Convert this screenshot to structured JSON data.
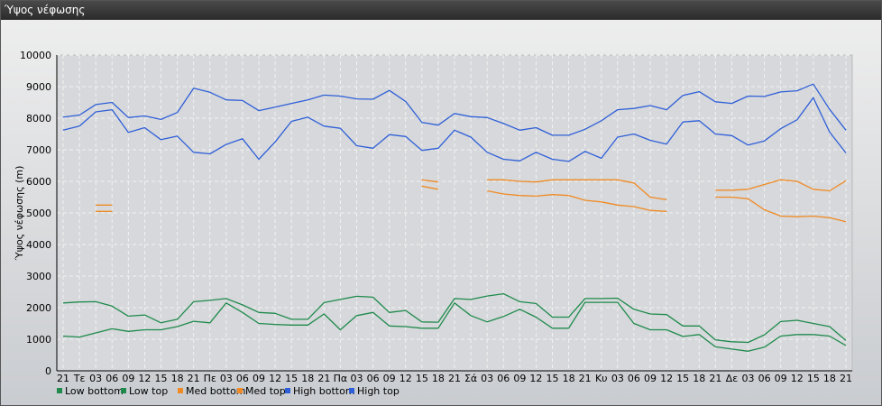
{
  "window": {
    "title": "Ύψος νέφωσης"
  },
  "chart_data": {
    "type": "line",
    "title": "",
    "xlabel": "",
    "ylabel": "Ύψος νέφωσης (m)",
    "ylim": [
      0,
      10000
    ],
    "yticks": [
      0,
      1000,
      2000,
      3000,
      4000,
      5000,
      6000,
      7000,
      8000,
      9000,
      10000
    ],
    "grid": true,
    "legend": "bottom-left",
    "x": [
      "21",
      "Τε",
      "03",
      "06",
      "09",
      "12",
      "15",
      "18",
      "21",
      "Πε",
      "03",
      "06",
      "09",
      "12",
      "15",
      "18",
      "21",
      "Πα",
      "03",
      "06",
      "09",
      "12",
      "15",
      "18",
      "21",
      "Σά",
      "03",
      "06",
      "09",
      "12",
      "15",
      "18",
      "21",
      "Κυ",
      "03",
      "06",
      "09",
      "12",
      "15",
      "18",
      "21",
      "Δε",
      "03",
      "06",
      "09",
      "12",
      "15",
      "18",
      "21"
    ],
    "series": [
      {
        "name": "Low bottom",
        "color": "#1f8a4c",
        "values": [
          1100,
          1070,
          1200,
          1330,
          1250,
          1300,
          1300,
          1400,
          1570,
          1520,
          2150,
          1850,
          1500,
          1470,
          1450,
          1450,
          1800,
          1300,
          1750,
          1850,
          1420,
          1400,
          1350,
          1350,
          2150,
          1750,
          1550,
          1720,
          1950,
          1700,
          1350,
          1350,
          2170,
          2170,
          2170,
          1500,
          1300,
          1300,
          1090,
          1150,
          760,
          690,
          620,
          750,
          1100,
          1150,
          1150,
          1100,
          800
        ]
      },
      {
        "name": "Low top",
        "color": "#1f8a4c",
        "values": [
          2150,
          2180,
          2190,
          2050,
          1730,
          1770,
          1520,
          1630,
          2190,
          2230,
          2290,
          2090,
          1850,
          1820,
          1630,
          1630,
          2160,
          2260,
          2360,
          2330,
          1850,
          1910,
          1550,
          1540,
          2290,
          2260,
          2370,
          2440,
          2190,
          2130,
          1700,
          1700,
          2290,
          2290,
          2300,
          1950,
          1800,
          1780,
          1420,
          1420,
          980,
          920,
          900,
          1140,
          1560,
          1600,
          1500,
          1400,
          960
        ]
      },
      {
        "name": "Med bottom",
        "color": "#f08a24",
        "values": [
          null,
          null,
          5050,
          5050,
          null,
          null,
          null,
          null,
          null,
          null,
          null,
          null,
          null,
          null,
          null,
          null,
          null,
          null,
          null,
          null,
          null,
          null,
          5850,
          5750,
          null,
          null,
          5700,
          5600,
          5550,
          5530,
          5580,
          5550,
          5400,
          5350,
          5250,
          5200,
          5080,
          5050,
          null,
          null,
          5500,
          5500,
          5450,
          5100,
          4900,
          4880,
          4900,
          4850,
          4720
        ]
      },
      {
        "name": "Med top",
        "color": "#f08a24",
        "values": [
          null,
          null,
          5250,
          5250,
          null,
          null,
          null,
          null,
          null,
          null,
          null,
          null,
          null,
          null,
          null,
          null,
          null,
          null,
          null,
          null,
          null,
          null,
          6050,
          5980,
          null,
          null,
          6050,
          6050,
          6000,
          5980,
          6050,
          6050,
          6050,
          6050,
          6050,
          5950,
          5500,
          5420,
          null,
          null,
          5720,
          5720,
          5750,
          5900,
          6050,
          6000,
          5750,
          5700,
          6020
        ]
      },
      {
        "name": "High bottom",
        "color": "#2f5fd8",
        "values": [
          7620,
          7750,
          8200,
          8270,
          7550,
          7700,
          7320,
          7430,
          6920,
          6870,
          7170,
          7350,
          6700,
          7250,
          7900,
          8030,
          7750,
          7680,
          7130,
          7050,
          7480,
          7420,
          6980,
          7050,
          7620,
          7400,
          6920,
          6700,
          6650,
          6920,
          6700,
          6630,
          6950,
          6730,
          7400,
          7500,
          7300,
          7180,
          7880,
          7920,
          7500,
          7450,
          7150,
          7280,
          7670,
          7950,
          8650,
          7560,
          6900
        ]
      },
      {
        "name": "High top",
        "color": "#2f5fd8",
        "values": [
          8030,
          8100,
          8430,
          8500,
          8020,
          8070,
          7960,
          8180,
          8950,
          8820,
          8580,
          8560,
          8240,
          8350,
          8470,
          8580,
          8730,
          8700,
          8610,
          8600,
          8880,
          8530,
          7870,
          7780,
          8150,
          8050,
          8020,
          7830,
          7620,
          7700,
          7460,
          7460,
          7650,
          7920,
          8270,
          8310,
          8400,
          8270,
          8720,
          8840,
          8520,
          8470,
          8700,
          8690,
          8830,
          8870,
          9080,
          8280,
          7620
        ]
      }
    ]
  }
}
